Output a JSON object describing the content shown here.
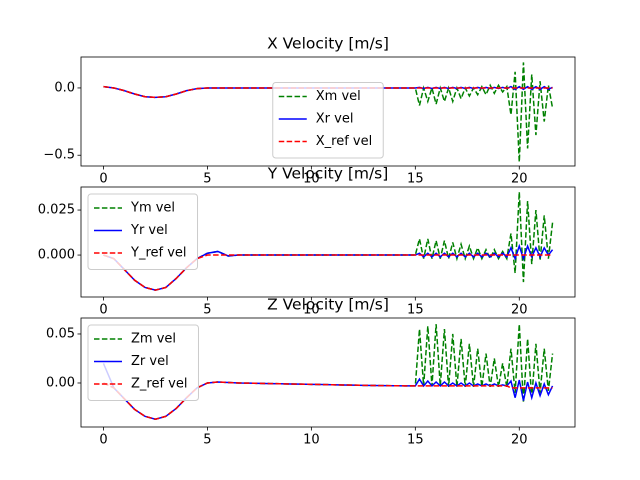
{
  "chart_data": [
    {
      "type": "line",
      "title": "X Velocity [m/s]",
      "x": [
        0,
        0.5,
        1,
        1.5,
        2,
        2.5,
        3,
        3.5,
        4,
        4.5,
        5,
        5.5,
        6,
        6.5,
        7,
        7.5,
        8,
        8.5,
        9,
        9.5,
        10,
        10.5,
        11,
        11.5,
        12,
        12.5,
        13,
        13.5,
        14,
        14.5,
        15,
        15.2,
        15.4,
        15.6,
        15.8,
        16,
        16.2,
        16.4,
        16.6,
        16.8,
        17,
        17.2,
        17.4,
        17.6,
        17.8,
        18,
        18.2,
        18.4,
        18.6,
        18.8,
        19,
        19.2,
        19.4,
        19.6,
        19.8,
        20,
        20.2,
        20.4,
        20.6,
        20.8,
        21,
        21.2,
        21.4,
        21.6
      ],
      "series": [
        {
          "name": "Xm vel",
          "color": "#008000",
          "dash": true,
          "values": [
            0.01,
            0,
            -0.02,
            -0.045,
            -0.065,
            -0.07,
            -0.065,
            -0.045,
            -0.02,
            -0.005,
            0,
            0,
            0,
            0,
            0,
            0,
            0,
            0,
            0,
            0,
            0,
            0,
            0,
            0,
            0,
            0,
            0,
            0,
            0,
            0,
            0,
            -0.13,
            0,
            -0.1,
            0,
            -0.12,
            0,
            -0.1,
            0,
            -0.1,
            0,
            -0.08,
            0,
            -0.06,
            0,
            -0.05,
            0.01,
            -0.05,
            0.02,
            -0.04,
            0.02,
            -0.03,
            0.01,
            -0.2,
            0.12,
            -0.55,
            0.19,
            -0.45,
            0.1,
            -0.35,
            0.05,
            -0.25,
            0.02,
            -0.15
          ]
        },
        {
          "name": "Xr vel",
          "color": "#0000ff",
          "dash": false,
          "values": [
            0.01,
            0,
            -0.02,
            -0.045,
            -0.065,
            -0.07,
            -0.065,
            -0.045,
            -0.02,
            -0.005,
            0,
            0,
            0,
            0,
            0,
            0,
            0,
            0,
            0,
            0,
            0,
            0,
            0,
            0,
            0,
            0,
            0,
            0,
            0,
            0,
            0,
            0.004,
            -0.004,
            0.004,
            -0.004,
            0.004,
            -0.004,
            0.004,
            -0.004,
            0.004,
            -0.004,
            0.004,
            -0.004,
            0.004,
            -0.004,
            0.004,
            -0.004,
            0.004,
            -0.004,
            0.004,
            -0.004,
            0.004,
            -0.004,
            0.01,
            -0.01,
            0.01,
            -0.01,
            0.01,
            -0.01,
            0.01,
            -0.01,
            0.01,
            -0.01,
            0.005
          ]
        },
        {
          "name": "X_ref vel",
          "color": "#ff0000",
          "dash": true,
          "values": [
            0.01,
            0,
            -0.02,
            -0.045,
            -0.065,
            -0.07,
            -0.065,
            -0.045,
            -0.02,
            -0.005,
            0,
            0,
            0,
            0,
            0,
            0,
            0,
            0,
            0,
            0,
            0,
            0,
            0,
            0,
            0,
            0,
            0,
            0,
            0,
            0,
            0,
            0,
            0,
            0,
            0,
            0,
            0,
            0,
            0,
            0,
            0,
            0,
            0,
            0,
            0,
            0,
            0,
            0,
            0,
            0,
            0,
            0,
            0,
            0,
            0,
            0,
            0,
            0,
            0,
            0,
            0,
            0,
            0,
            0
          ]
        }
      ],
      "xlim": [
        -1.08,
        22.68
      ],
      "ylim": [
        -0.58,
        0.23
      ],
      "xticks": [
        0,
        5,
        10,
        15,
        20
      ],
      "yticks": [
        {
          "value": -0.5,
          "label": "−0.5"
        },
        {
          "value": 0,
          "label": "0.0"
        }
      ],
      "legend": "lower center"
    },
    {
      "type": "line",
      "title": "Y Velocity [m/s]",
      "x": [
        0,
        0.5,
        1,
        1.5,
        2,
        2.5,
        3,
        3.5,
        4,
        4.5,
        5,
        5.5,
        6,
        6.5,
        7,
        7.5,
        8,
        8.5,
        9,
        9.5,
        10,
        10.5,
        11,
        11.5,
        12,
        12.5,
        13,
        13.5,
        14,
        14.5,
        15,
        15.2,
        15.4,
        15.6,
        15.8,
        16,
        16.2,
        16.4,
        16.6,
        16.8,
        17,
        17.2,
        17.4,
        17.6,
        17.8,
        18,
        18.2,
        18.4,
        18.6,
        18.8,
        19,
        19.2,
        19.4,
        19.6,
        19.8,
        20,
        20.2,
        20.4,
        20.6,
        20.8,
        21,
        21.2,
        21.4,
        21.6
      ],
      "series": [
        {
          "name": "Ym vel",
          "color": "#008000",
          "dash": true,
          "values": [
            0,
            -0.002,
            -0.008,
            -0.014,
            -0.018,
            -0.0195,
            -0.018,
            -0.013,
            -0.007,
            -0.002,
            0.001,
            0.002,
            -0.0005,
            0,
            0,
            0,
            0,
            0,
            0,
            0,
            0,
            0,
            0,
            0,
            0,
            0,
            0,
            0,
            0,
            0,
            0,
            0.009,
            -0.002,
            0.009,
            -0.002,
            0.008,
            -0.002,
            0.008,
            -0.002,
            0.007,
            -0.002,
            0.006,
            -0.002,
            0.005,
            -0.002,
            0.004,
            -0.002,
            0.003,
            -0.002,
            0.003,
            -0.002,
            0.002,
            -0.002,
            0.012,
            -0.01,
            0.035,
            -0.015,
            0.03,
            -0.005,
            0.025,
            -0.003,
            0.022,
            -0.002,
            0.018
          ]
        },
        {
          "name": "Yr vel",
          "color": "#0000ff",
          "dash": false,
          "values": [
            0,
            -0.002,
            -0.008,
            -0.014,
            -0.018,
            -0.0195,
            -0.018,
            -0.013,
            -0.007,
            -0.002,
            0.001,
            0.002,
            -0.0005,
            0,
            0,
            0,
            0,
            0,
            0,
            0,
            0,
            0,
            0,
            0,
            0,
            0,
            0,
            0,
            0,
            0,
            0,
            0.001,
            -0.001,
            0.001,
            -0.001,
            0.001,
            -0.001,
            0.001,
            -0.001,
            0.001,
            -0.001,
            0.001,
            -0.001,
            0.001,
            -0.001,
            0.001,
            -0.001,
            0.001,
            -0.001,
            0.001,
            -0.001,
            0.001,
            -0.001,
            0.004,
            -0.002,
            0.005,
            -0.002,
            0.005,
            -0.001,
            0.004,
            -0.001,
            0.004,
            0,
            0.003
          ]
        },
        {
          "name": "Y_ref vel",
          "color": "#ff0000",
          "dash": true,
          "values": [
            0,
            -0.002,
            -0.008,
            -0.014,
            -0.018,
            -0.0195,
            -0.018,
            -0.013,
            -0.007,
            -0.002,
            0,
            0,
            0,
            0,
            0,
            0,
            0,
            0,
            0,
            0,
            0,
            0,
            0,
            0,
            0,
            0,
            0,
            0,
            0,
            0,
            0,
            0,
            0,
            0,
            0,
            0,
            0,
            0,
            0,
            0,
            0,
            0,
            0,
            0,
            0,
            0,
            0,
            0,
            0,
            0,
            0,
            0,
            0,
            0,
            0,
            0,
            0,
            0,
            0,
            0,
            0,
            0,
            0,
            0
          ]
        }
      ],
      "xlim": [
        -1.08,
        22.68
      ],
      "ylim": [
        -0.0233,
        0.0378
      ],
      "xticks": [
        0,
        5,
        10,
        15,
        20
      ],
      "yticks": [
        {
          "value": 0,
          "label": "0.000"
        },
        {
          "value": 0.025,
          "label": "0.025"
        }
      ],
      "legend": "upper left"
    },
    {
      "type": "line",
      "title": "Z Velocity [m/s]",
      "x": [
        0,
        0.5,
        1,
        1.5,
        2,
        2.5,
        3,
        3.5,
        4,
        4.5,
        5,
        5.5,
        6,
        6.5,
        7,
        7.5,
        8,
        8.5,
        9,
        9.5,
        10,
        10.5,
        11,
        11.5,
        12,
        12.5,
        13,
        13.5,
        14,
        14.5,
        15,
        15.2,
        15.4,
        15.6,
        15.8,
        16,
        16.2,
        16.4,
        16.6,
        16.8,
        17,
        17.2,
        17.4,
        17.6,
        17.8,
        18,
        18.2,
        18.4,
        18.6,
        18.8,
        19,
        19.2,
        19.4,
        19.6,
        19.8,
        20,
        20.2,
        20.4,
        20.6,
        20.8,
        21,
        21.2,
        21.4,
        21.6
      ],
      "series": [
        {
          "name": "Zm vel",
          "color": "#008000",
          "dash": true,
          "values": [
            0,
            -0.005,
            -0.016,
            -0.027,
            -0.034,
            -0.037,
            -0.034,
            -0.026,
            -0.015,
            -0.005,
            0,
            0.001,
            0.0005,
            0,
            -0.0002,
            -0.0004,
            -0.0006,
            -0.0008,
            -0.001,
            -0.0012,
            -0.0014,
            -0.0016,
            -0.0018,
            -0.002,
            -0.0022,
            -0.0024,
            -0.0026,
            -0.0027,
            -0.0028,
            -0.0029,
            -0.003,
            0.055,
            -0.003,
            0.058,
            -0.003,
            0.06,
            -0.003,
            0.055,
            -0.004,
            0.05,
            -0.004,
            0.045,
            -0.004,
            0.04,
            -0.004,
            0.035,
            -0.004,
            0.03,
            -0.004,
            0.025,
            -0.004,
            0.02,
            -0.004,
            0.035,
            -0.01,
            0.06,
            -0.02,
            0.045,
            -0.015,
            0.04,
            -0.01,
            0.035,
            -0.008,
            0.03
          ]
        },
        {
          "name": "Zr vel",
          "color": "#0000ff",
          "dash": false,
          "values": [
            0.02,
            -0.005,
            -0.016,
            -0.027,
            -0.034,
            -0.037,
            -0.034,
            -0.026,
            -0.015,
            -0.005,
            0,
            0.001,
            0.0005,
            0,
            -0.0002,
            -0.0004,
            -0.0006,
            -0.0008,
            -0.001,
            -0.0012,
            -0.0014,
            -0.0016,
            -0.0018,
            -0.002,
            -0.0022,
            -0.0024,
            -0.0026,
            -0.0027,
            -0.0028,
            -0.0029,
            -0.003,
            0.004,
            -0.003,
            0.002,
            -0.003,
            0.001,
            -0.003,
            0.001,
            -0.003,
            0,
            -0.003,
            0,
            -0.003,
            0,
            -0.003,
            -0.001,
            -0.003,
            -0.001,
            -0.003,
            -0.001,
            -0.003,
            -0.002,
            -0.003,
            0.002,
            -0.015,
            0.003,
            -0.018,
            0.001,
            -0.015,
            0,
            -0.013,
            -0.001,
            -0.012,
            -0.003
          ]
        },
        {
          "name": "Z_ref vel",
          "color": "#ff0000",
          "dash": true,
          "values": [
            0,
            -0.005,
            -0.016,
            -0.027,
            -0.034,
            -0.037,
            -0.034,
            -0.026,
            -0.015,
            -0.005,
            0,
            0.001,
            0.0005,
            0,
            -0.0002,
            -0.0004,
            -0.0006,
            -0.0008,
            -0.001,
            -0.0012,
            -0.0014,
            -0.0016,
            -0.0018,
            -0.002,
            -0.0022,
            -0.0024,
            -0.0026,
            -0.0027,
            -0.0028,
            -0.0029,
            -0.003,
            -0.003,
            -0.003,
            -0.003,
            -0.003,
            -0.003,
            -0.003,
            -0.003,
            -0.003,
            -0.003,
            -0.003,
            -0.003,
            -0.003,
            -0.003,
            -0.003,
            -0.003,
            -0.003,
            -0.003,
            -0.003,
            -0.003,
            -0.003,
            -0.003,
            -0.003,
            -0.005,
            -0.005,
            -0.005,
            -0.005,
            -0.005,
            -0.005,
            -0.005,
            -0.005,
            -0.005,
            -0.005,
            -0.005
          ]
        }
      ],
      "xlim": [
        -1.08,
        22.68
      ],
      "ylim": [
        -0.0449,
        0.0663
      ],
      "xticks": [
        0,
        5,
        10,
        15,
        20
      ],
      "yticks": [
        {
          "value": 0,
          "label": "0.00"
        },
        {
          "value": 0.05,
          "label": "0.05"
        }
      ],
      "legend": "upper left"
    }
  ]
}
